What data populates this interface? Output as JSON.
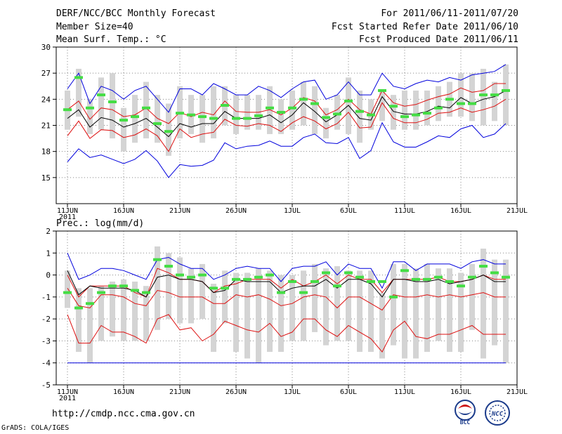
{
  "header": {
    "left": [
      "DERF/NCC/BCC Monthly Forecast",
      "Member Size=40",
      "Mean Surf. Temp.: °C"
    ],
    "right": [
      "For 2011/06/11-2011/07/20",
      "Fcst Started Refer Date 2011/06/10",
      "Fcst Produced Date 2011/06/11"
    ]
  },
  "footer": {
    "url": "http://cmdp.ncc.cma.gov.cn",
    "credit": "GrADS: COLA/IGES"
  },
  "logos": {
    "bcc": "BCC",
    "ncc": "NCC"
  },
  "colors": {
    "box": "#d4d4d4",
    "green": "#44dd44",
    "red": "#dd1111",
    "blue": "#0000dd",
    "mean": "#000000",
    "grid": "#888888"
  },
  "chart_data": [
    {
      "type": "line",
      "title": "Mean Surf. Temp.: °C",
      "xlabel": "",
      "ylabel": "",
      "xlim": [
        0,
        41
      ],
      "ylim": [
        12,
        30
      ],
      "yticks": [
        15,
        18,
        21,
        24,
        27,
        30
      ],
      "xticks": [
        {
          "d": 1,
          "label": "11JUN"
        },
        {
          "d": 6,
          "label": "16JUN"
        },
        {
          "d": 11,
          "label": "21JUN"
        },
        {
          "d": 16,
          "label": "26JUN"
        },
        {
          "d": 21,
          "label": "1JUL"
        },
        {
          "d": 26,
          "label": "6JUL"
        },
        {
          "d": 31,
          "label": "11JUL"
        },
        {
          "d": 36,
          "label": "16JUL"
        },
        {
          "d": 41,
          "label": "21JUL"
        }
      ],
      "year_label": "2011",
      "x": [
        1,
        2,
        3,
        4,
        5,
        6,
        7,
        8,
        9,
        10,
        11,
        12,
        13,
        14,
        15,
        16,
        17,
        18,
        19,
        20,
        21,
        22,
        23,
        24,
        25,
        26,
        27,
        28,
        29,
        30,
        31,
        32,
        33,
        34,
        35,
        36,
        37,
        38,
        39,
        40
      ],
      "box_low": [
        20.5,
        22.0,
        20.0,
        20.5,
        19.5,
        18.0,
        19.0,
        19.5,
        19.0,
        17.5,
        19.5,
        20.0,
        19.0,
        19.5,
        21.0,
        20.0,
        20.5,
        20.5,
        20.0,
        20.0,
        20.5,
        21.0,
        20.0,
        19.5,
        20.5,
        20.0,
        19.0,
        20.5,
        21.5,
        20.5,
        20.5,
        20.5,
        21.0,
        21.5,
        22.0,
        22.0,
        21.5,
        21.0,
        21.5,
        21.0
      ],
      "box_high": [
        25.0,
        27.5,
        24.0,
        26.5,
        27.0,
        23.0,
        24.5,
        26.0,
        24.5,
        23.5,
        25.5,
        24.5,
        24.5,
        25.5,
        25.5,
        24.5,
        24.5,
        24.5,
        25.5,
        24.0,
        25.0,
        26.0,
        25.5,
        23.0,
        24.5,
        26.5,
        25.0,
        24.0,
        25.0,
        24.5,
        25.0,
        25.0,
        25.0,
        25.5,
        26.0,
        27.0,
        27.0,
        27.5,
        26.0,
        28.0
      ],
      "control": [
        22.8,
        26.5,
        23.0,
        24.5,
        23.7,
        21.6,
        22.0,
        23.0,
        21.2,
        20.3,
        22.4,
        22.2,
        22.0,
        21.8,
        23.3,
        21.8,
        21.8,
        22.1,
        23.0,
        22.5,
        23.0,
        24.0,
        23.5,
        21.9,
        22.3,
        23.8,
        22.6,
        22.2,
        25.0,
        23.2,
        22.0,
        22.2,
        22.4,
        23.0,
        24.0,
        23.5,
        23.5,
        24.5,
        24.5,
        25.0
      ],
      "series": [
        {
          "name": "max",
          "color": "#0000dd",
          "values": [
            25.2,
            27.0,
            23.5,
            25.5,
            25.0,
            24.0,
            25.0,
            25.5,
            24.0,
            22.5,
            25.2,
            25.2,
            24.5,
            25.8,
            25.2,
            24.5,
            24.5,
            25.5,
            25.0,
            24.2,
            25.2,
            26.0,
            26.2,
            24.0,
            24.5,
            26.0,
            24.5,
            24.5,
            27.0,
            25.5,
            25.2,
            25.8,
            26.2,
            26.0,
            26.5,
            26.2,
            26.8,
            27.0,
            27.2,
            28.0
          ]
        },
        {
          "name": "upper",
          "color": "#dd1111",
          "values": [
            22.8,
            23.8,
            21.7,
            23.0,
            22.8,
            22.0,
            22.2,
            23.0,
            21.8,
            21.2,
            22.5,
            22.0,
            22.5,
            22.2,
            23.8,
            22.6,
            22.5,
            22.5,
            22.8,
            22.2,
            23.0,
            24.2,
            23.8,
            22.2,
            22.8,
            24.0,
            22.8,
            22.3,
            25.0,
            23.6,
            23.2,
            23.4,
            23.9,
            24.3,
            24.6,
            25.3,
            24.8,
            25.0,
            25.8,
            25.8
          ]
        },
        {
          "name": "mean",
          "color": "#000000",
          "values": [
            21.8,
            22.8,
            20.8,
            21.9,
            21.6,
            20.8,
            21.2,
            21.8,
            20.8,
            19.7,
            21.2,
            20.8,
            21.2,
            21.2,
            22.6,
            21.8,
            21.8,
            21.8,
            22.2,
            21.3,
            22.2,
            23.6,
            22.6,
            21.4,
            22.2,
            23.3,
            21.8,
            21.6,
            24.3,
            22.6,
            22.3,
            22.3,
            22.6,
            23.2,
            23.0,
            24.2,
            23.5,
            24.0,
            24.3,
            25.0
          ]
        },
        {
          "name": "lower",
          "color": "#dd1111",
          "values": [
            19.8,
            21.5,
            19.5,
            20.5,
            20.4,
            19.6,
            19.9,
            20.6,
            19.8,
            18.0,
            20.6,
            19.6,
            20.0,
            20.2,
            21.7,
            21.0,
            20.9,
            21.2,
            21.0,
            20.3,
            21.3,
            22.0,
            21.5,
            20.6,
            21.2,
            22.5,
            20.7,
            20.8,
            23.6,
            21.8,
            21.3,
            21.3,
            21.7,
            22.4,
            22.5,
            23.0,
            22.5,
            22.8,
            23.2,
            24.0
          ]
        },
        {
          "name": "min",
          "color": "#0000dd",
          "values": [
            16.8,
            18.3,
            17.3,
            17.6,
            17.1,
            16.6,
            17.1,
            18.1,
            16.9,
            15.0,
            16.5,
            16.3,
            16.4,
            17.0,
            19.0,
            18.3,
            18.6,
            18.7,
            19.2,
            18.6,
            18.6,
            19.6,
            20.0,
            19.0,
            18.9,
            19.6,
            17.2,
            18.1,
            21.3,
            19.1,
            18.5,
            18.5,
            19.1,
            19.8,
            19.6,
            20.6,
            21.0,
            19.6,
            20.0,
            21.2
          ]
        }
      ]
    },
    {
      "type": "line",
      "title": "Prec.: log(mm/d)",
      "xlabel": "",
      "ylabel": "",
      "xlim": [
        0,
        41
      ],
      "ylim": [
        -5,
        2
      ],
      "yticks": [
        -5,
        -4,
        -3,
        -2,
        -1,
        0,
        1,
        2
      ],
      "xticks": [
        {
          "d": 1,
          "label": "11JUN"
        },
        {
          "d": 6,
          "label": "16JUN"
        },
        {
          "d": 11,
          "label": "21JUN"
        },
        {
          "d": 16,
          "label": "26JUN"
        },
        {
          "d": 21,
          "label": "1JUL"
        },
        {
          "d": 26,
          "label": "6JUL"
        },
        {
          "d": 31,
          "label": "11JUL"
        },
        {
          "d": 36,
          "label": "16JUL"
        },
        {
          "d": 41,
          "label": "21JUL"
        }
      ],
      "year_label": "2011",
      "x": [
        1,
        2,
        3,
        4,
        5,
        6,
        7,
        8,
        9,
        10,
        11,
        12,
        13,
        14,
        15,
        16,
        17,
        18,
        19,
        20,
        21,
        22,
        23,
        24,
        25,
        26,
        27,
        28,
        29,
        30,
        31,
        32,
        33,
        34,
        35,
        36,
        37,
        38,
        39,
        40
      ],
      "box_low": [
        -1.5,
        -3.5,
        -4.0,
        -3.0,
        -2.8,
        -3.0,
        -3.0,
        -3.0,
        -2.5,
        -2.0,
        -2.2,
        -2.2,
        -2.0,
        -3.5,
        -2.2,
        -3.5,
        -3.8,
        -4.0,
        -3.5,
        -3.5,
        -3.0,
        -3.0,
        -2.6,
        -3.2,
        -3.0,
        -3.0,
        -3.5,
        -3.5,
        -3.8,
        -3.2,
        -3.8,
        -3.8,
        -3.5,
        -3.0,
        -3.5,
        -3.5,
        -2.5,
        -3.8,
        -3.2,
        -4.0
      ],
      "box_high": [
        0.2,
        -0.6,
        -0.6,
        -0.5,
        -0.3,
        -0.2,
        -0.3,
        -0.5,
        1.3,
        1.0,
        0.8,
        0.3,
        0.5,
        -0.4,
        0.2,
        0.1,
        0.1,
        0.3,
        0.2,
        0.0,
        0.0,
        0.2,
        0.5,
        0.3,
        0.4,
        0.2,
        0.2,
        0.2,
        -0.8,
        0.5,
        0.5,
        0.3,
        0.5,
        0.3,
        0.3,
        0.1,
        0.5,
        1.2,
        0.7,
        0.7
      ],
      "control": [
        -0.8,
        -1.5,
        -1.3,
        -0.8,
        -0.5,
        -0.5,
        -0.7,
        -0.8,
        0.7,
        0.4,
        0.0,
        -0.1,
        0.0,
        -0.6,
        -0.6,
        -0.2,
        -0.2,
        -0.1,
        0.0,
        -0.8,
        -0.3,
        -0.8,
        -0.3,
        0.1,
        -0.5,
        0.1,
        -0.1,
        -0.3,
        -0.3,
        -1.0,
        0.2,
        -0.2,
        -0.2,
        -0.1,
        -0.3,
        -0.5,
        -0.1,
        0.4,
        0.1,
        -0.1
      ],
      "series": [
        {
          "name": "max",
          "color": "#0000dd",
          "values": [
            1.0,
            -0.2,
            0.0,
            0.3,
            0.3,
            0.2,
            0.0,
            -0.2,
            0.7,
            0.8,
            0.5,
            0.3,
            0.3,
            -0.2,
            0.0,
            0.3,
            0.4,
            0.3,
            0.3,
            -0.3,
            0.3,
            0.4,
            0.4,
            0.6,
            0.0,
            0.5,
            0.3,
            0.3,
            -0.6,
            0.6,
            0.6,
            0.2,
            0.5,
            0.5,
            0.5,
            0.3,
            0.6,
            0.7,
            0.5,
            0.5
          ]
        },
        {
          "name": "upper",
          "color": "#dd1111",
          "values": [
            0.0,
            -1.0,
            -0.5,
            -0.5,
            -0.5,
            -0.5,
            -0.8,
            -1.0,
            0.3,
            0.1,
            -0.2,
            -0.2,
            -0.3,
            -0.8,
            -0.5,
            -0.4,
            -0.2,
            -0.2,
            -0.2,
            -0.6,
            -0.2,
            -0.5,
            -0.3,
            0.0,
            -0.4,
            0.0,
            -0.2,
            -0.2,
            -0.8,
            -0.2,
            -0.2,
            -0.2,
            -0.2,
            -0.1,
            -0.3,
            -0.3,
            -0.2,
            0.0,
            -0.2,
            -0.2
          ]
        },
        {
          "name": "mean",
          "color": "#000000",
          "values": [
            0.2,
            -0.9,
            -0.5,
            -0.6,
            -0.6,
            -0.6,
            -0.7,
            -1.0,
            -0.1,
            0.0,
            -0.2,
            -0.2,
            -0.3,
            -0.8,
            -0.7,
            -0.2,
            -0.3,
            -0.3,
            -0.3,
            -0.8,
            -0.6,
            -0.5,
            -0.5,
            -0.2,
            -0.6,
            -0.2,
            -0.2,
            -0.4,
            -1.0,
            -0.2,
            -0.2,
            -0.3,
            -0.3,
            -0.2,
            -0.4,
            -0.3,
            -0.2,
            0.0,
            -0.3,
            -0.3
          ]
        },
        {
          "name": "lower",
          "color": "#dd1111",
          "values": [
            -0.6,
            -1.4,
            -1.5,
            -0.9,
            -0.9,
            -1.0,
            -1.3,
            -1.4,
            -0.7,
            -0.8,
            -1.0,
            -1.0,
            -1.0,
            -1.3,
            -1.3,
            -0.9,
            -1.0,
            -0.9,
            -1.1,
            -1.4,
            -1.3,
            -1.0,
            -0.9,
            -1.0,
            -1.5,
            -1.0,
            -1.0,
            -1.3,
            -1.6,
            -0.9,
            -1.0,
            -1.0,
            -0.9,
            -1.0,
            -0.9,
            -1.0,
            -0.9,
            -0.8,
            -1.0,
            -1.0
          ]
        },
        {
          "name": "min",
          "color": "#dd1111",
          "values": [
            -1.8,
            -3.1,
            -3.1,
            -2.3,
            -2.6,
            -2.6,
            -2.8,
            -3.1,
            -2.0,
            -1.8,
            -2.5,
            -2.4,
            -3.0,
            -2.7,
            -2.1,
            -2.3,
            -2.5,
            -2.6,
            -2.2,
            -2.8,
            -2.6,
            -2.0,
            -2.0,
            -2.5,
            -2.8,
            -2.3,
            -2.6,
            -2.9,
            -3.5,
            -2.5,
            -2.1,
            -2.8,
            -2.9,
            -2.7,
            -2.7,
            -2.5,
            -2.3,
            -2.7,
            -2.7,
            -2.7
          ]
        }
      ],
      "floor": {
        "name": "floor",
        "color": "#0000dd",
        "value": -4
      }
    }
  ]
}
